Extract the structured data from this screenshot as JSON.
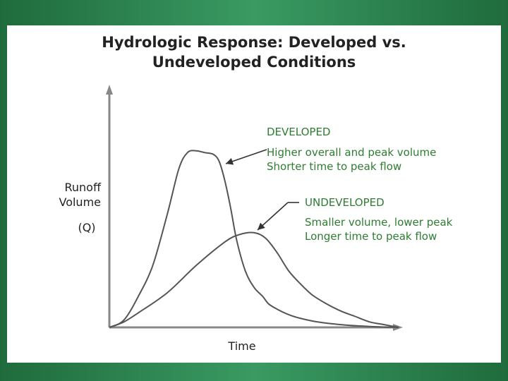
{
  "chart_data": {
    "type": "line",
    "title": [
      "Hydrologic Response:  Developed vs.",
      "Undeveloped Conditions"
    ],
    "xlabel": "Time",
    "ylabel": [
      "Runoff",
      "Volume",
      "(Q)"
    ],
    "xlim": [
      0,
      100
    ],
    "ylim": [
      0,
      100
    ],
    "grid": false,
    "series": [
      {
        "name": "DEVELOPED",
        "color": "#555555",
        "x": [
          0,
          5,
          10,
          15,
          20,
          24,
          27,
          30,
          33,
          36,
          38,
          40,
          42,
          44,
          47,
          50,
          53,
          55,
          58,
          62,
          66,
          72,
          80,
          90,
          100
        ],
        "y": [
          0,
          4,
          17,
          34,
          62,
          87,
          96,
          97,
          96,
          95,
          91,
          80,
          65,
          48,
          31,
          22,
          17,
          13,
          10,
          7,
          5,
          3,
          1.5,
          0.5,
          0
        ]
      },
      {
        "name": "UNDEVELOPED",
        "color": "#555555",
        "x": [
          0,
          5,
          10,
          20,
          30,
          40,
          45,
          50,
          54,
          58,
          62,
          66,
          70,
          75,
          80,
          85,
          90,
          95,
          100
        ],
        "y": [
          0,
          3,
          8,
          19,
          34,
          47,
          51,
          52,
          49,
          41,
          31,
          24,
          18,
          13,
          9,
          6,
          3,
          1.5,
          0
        ]
      }
    ],
    "annotations": [
      {
        "target": "DEVELOPED",
        "color": "#2e7d32",
        "title": "DEVELOPED",
        "lines": [
          "Higher overall and peak volume",
          "Shorter time to peak flow"
        ]
      },
      {
        "target": "UNDEVELOPED",
        "color": "#2e7d32",
        "title": "UNDEVELOPED",
        "lines": [
          "Smaller volume, lower peak",
          "Longer time to peak flow"
        ]
      }
    ],
    "axis_color": "#888888"
  }
}
